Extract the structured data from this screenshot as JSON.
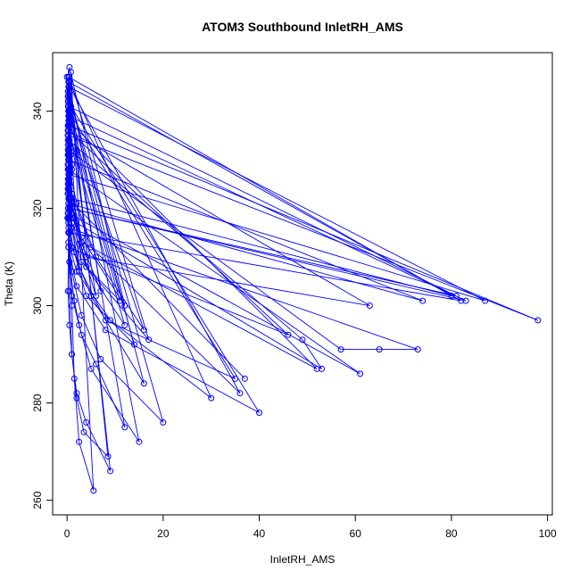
{
  "chart_data": {
    "type": "line",
    "title": "ATOM3 Southbound InletRH_AMS",
    "xlabel": "InletRH_AMS",
    "ylabel": "Theta (K)",
    "xlim": [
      -3,
      101
    ],
    "ylim": [
      257,
      352
    ],
    "x_ticks": [
      0,
      20,
      40,
      60,
      80,
      100
    ],
    "y_ticks": [
      260,
      280,
      300,
      320,
      340
    ],
    "grid": false,
    "legend": "none",
    "series_color": "#0000ff",
    "marker": "open-circle",
    "x": [
      0.0,
      0.3,
      0.5,
      1.0,
      1.5,
      2.5,
      5.5,
      0.8,
      0.5,
      0.3,
      0.5,
      1.0,
      2.0,
      3.5,
      8.5,
      0.5,
      0.3,
      0.3,
      0.2,
      0.5,
      1.0,
      2.0,
      4.0,
      9.0,
      0.5,
      0.2,
      0.1,
      0.5,
      1.5,
      3.0,
      6.0,
      12.0,
      0.3,
      0.5,
      0.3,
      0.5,
      1.0,
      2.5,
      5.0,
      15.0,
      0.5,
      0.5,
      0.2,
      0.3,
      1.0,
      3.0,
      7.0,
      20.0,
      0.5,
      0.5,
      0.2,
      0.3,
      2.0,
      8.0,
      40.0,
      0.8,
      0.3,
      0.2,
      0.5,
      0.3,
      2.0,
      9.0,
      30.0,
      0.5,
      0.2,
      0.3,
      0.5,
      1.0,
      3.0,
      11.0,
      0.5,
      0.3,
      0.2,
      0.3,
      1.5,
      4.0,
      14.0,
      0.5,
      0.3,
      0.3,
      0.2,
      1.0,
      5.0,
      16.0,
      0.5,
      0.3,
      0.2,
      0.3,
      1.0,
      3.0,
      6.0,
      0.5,
      0.8,
      0.3,
      0.3,
      1.0,
      2.5,
      8.0,
      35.0,
      0.3,
      0.5,
      0.3,
      0.3,
      1.0,
      4.0,
      12.0,
      0.3,
      0.2,
      0.5,
      1.0,
      3.0,
      7.0,
      0.5,
      0.3,
      0.2,
      0.3,
      2.0,
      6.0,
      16.0,
      0.3,
      0.2,
      0.3,
      0.5,
      1.5,
      4.0,
      17.0,
      0.5,
      0.3,
      0.2,
      0.3,
      1.0,
      5.0,
      36.0,
      0.5,
      0.3,
      0.2,
      0.3,
      1.0,
      3.0,
      12.0,
      0.5,
      0.2,
      0.3,
      0.5,
      1.0,
      3.0,
      52.0,
      0.3,
      0.2,
      0.3,
      0.5,
      1.0,
      2.5,
      0.3,
      0.2,
      0.3,
      0.5,
      1.0,
      4.0,
      63.0,
      0.3,
      0.2,
      0.5,
      0.3,
      1.0,
      0.2,
      0.5,
      0.3,
      0.5,
      0.2,
      1.0,
      80.0,
      0.3,
      0.2,
      0.5,
      0.3,
      1.0,
      0.2,
      0.5,
      81.0,
      0.3,
      0.2,
      0.5,
      0.3,
      1.0,
      0.2,
      0.5,
      82.0,
      0.3,
      0.2,
      0.5,
      0.3,
      1.0,
      0.2,
      0.5,
      83.0,
      0.3,
      0.2,
      0.5,
      0.3,
      87.0,
      0.3,
      0.2,
      0.5,
      98.0,
      0.3,
      0.2,
      0.5,
      0.3,
      74.0,
      0.3,
      0.2,
      0.5,
      0.3,
      73.0,
      65.0,
      57.0,
      0.3,
      0.2,
      0.5,
      0.3,
      53.0,
      49.0,
      0.3,
      0.2,
      0.5,
      0.3,
      61.0,
      0.3,
      0.2,
      0.5,
      0.3,
      46.0,
      0.3,
      0.2,
      0.5,
      0.3,
      37.0
    ],
    "y": [
      347.0,
      330.0,
      315.0,
      300.0,
      285.0,
      272.0,
      262.0,
      348.0,
      333.0,
      318.0,
      303.0,
      290.0,
      281.0,
      274.0,
      269.0,
      346.0,
      330.0,
      315.0,
      303.0,
      296.0,
      290.0,
      282.0,
      276.0,
      266.0,
      344.0,
      329.0,
      318.0,
      309.0,
      301.0,
      294.0,
      288.0,
      275.0,
      342.0,
      327.0,
      317.0,
      309.0,
      302.0,
      296.0,
      287.0,
      272.0,
      345.0,
      333.0,
      323.0,
      315.0,
      307.0,
      298.0,
      289.0,
      276.0,
      343.0,
      330.0,
      320.0,
      312.0,
      304.0,
      295.0,
      278.0,
      341.0,
      332.0,
      324.0,
      318.0,
      313.0,
      307.0,
      297.0,
      281.0,
      346.0,
      336.0,
      328.0,
      322.0,
      316.0,
      309.0,
      301.0,
      338.0,
      330.0,
      323.0,
      317.0,
      311.0,
      302.0,
      292.0,
      339.0,
      331.0,
      325.0,
      319.0,
      312.0,
      302.0,
      284.0,
      343.0,
      335.0,
      329.0,
      324.0,
      319.0,
      312.0,
      302.0,
      337.0,
      331.0,
      326.0,
      321.0,
      316.0,
      308.0,
      297.0,
      285.0,
      340.0,
      334.0,
      329.0,
      324.0,
      317.0,
      308.0,
      296.0,
      336.0,
      331.0,
      327.0,
      321.0,
      313.0,
      303.0,
      344.0,
      339.0,
      334.0,
      329.0,
      321.0,
      310.0,
      295.0,
      340.0,
      335.0,
      331.0,
      326.0,
      318.0,
      308.0,
      293.0,
      347.0,
      341.0,
      336.0,
      331.0,
      323.0,
      312.0,
      282.0,
      345.0,
      340.0,
      335.0,
      330.0,
      323.0,
      314.0,
      300.0,
      349.0,
      343.0,
      337.0,
      331.0,
      323.0,
      313.0,
      287.0,
      338.0,
      333.0,
      328.0,
      323.0,
      316.0,
      307.0,
      342.0,
      337.0,
      332.0,
      327.0,
      320.0,
      310.0,
      300.0,
      336.0,
      332.0,
      328.0,
      324.0,
      318.0,
      344.0,
      340.0,
      336.0,
      332.0,
      328.0,
      322.0,
      302.0,
      347.0,
      343.0,
      339.0,
      335.0,
      329.0,
      325.0,
      320.0,
      302.0,
      341.0,
      337.0,
      333.0,
      329.0,
      323.0,
      319.0,
      315.0,
      301.0,
      346.0,
      342.0,
      338.0,
      334.0,
      328.0,
      324.0,
      320.0,
      301.0,
      339.0,
      335.0,
      331.0,
      327.0,
      301.0,
      345.0,
      341.0,
      337.0,
      297.0,
      335.0,
      331.0,
      327.0,
      321.0,
      301.0,
      330.0,
      326.0,
      322.0,
      316.0,
      291.0,
      291.0,
      291.0,
      332.0,
      328.0,
      324.0,
      318.0,
      287.0,
      293.0,
      334.0,
      329.0,
      325.0,
      319.0,
      286.0,
      328.0,
      323.0,
      318.0,
      312.0,
      294.0,
      336.0,
      331.0,
      327.0,
      322.0,
      285.0
    ]
  }
}
